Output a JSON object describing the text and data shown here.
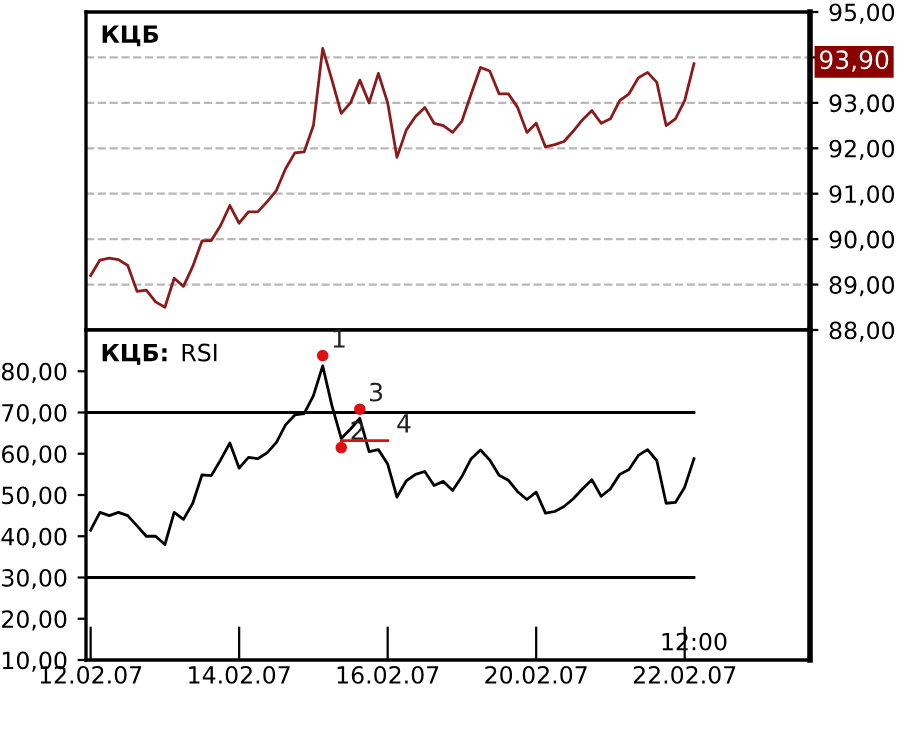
{
  "chart_data": [
    {
      "type": "line",
      "title": "КЦБ",
      "categories": [
        null,
        null,
        null,
        null,
        null,
        null,
        null,
        null,
        null,
        null,
        null,
        null,
        null,
        null,
        null,
        null,
        null,
        null,
        null,
        null,
        null,
        null,
        null,
        null,
        null,
        null,
        null,
        null,
        null,
        null,
        null,
        null,
        null,
        null,
        null,
        null,
        null,
        null,
        null,
        null,
        null,
        null,
        null,
        null,
        null,
        null,
        null,
        null,
        null,
        null,
        null,
        null,
        null,
        null,
        null,
        null,
        null,
        null,
        null,
        null,
        null,
        null,
        null,
        null,
        null,
        null,
        null,
        null,
        null,
        null,
        null,
        null,
        null,
        null,
        null,
        null,
        null,
        null
      ],
      "series": [
        {
          "color": "#8b1a1a",
          "values": [
            89.2,
            89.54,
            89.58,
            89.55,
            89.42,
            88.85,
            88.88,
            88.62,
            88.5,
            89.14,
            88.96,
            89.4,
            89.96,
            89.97,
            90.3,
            90.74,
            90.35,
            90.6,
            90.6,
            90.82,
            91.07,
            91.55,
            91.9,
            91.92,
            92.5,
            94.2,
            93.5,
            92.77,
            93.0,
            93.5,
            93.0,
            93.65,
            93.0,
            91.8,
            92.4,
            92.7,
            92.9,
            92.55,
            92.5,
            92.35,
            92.6,
            93.2,
            93.78,
            93.7,
            93.2,
            93.2,
            92.9,
            92.35,
            92.55,
            92.03,
            92.08,
            92.15,
            92.38,
            92.63,
            92.83,
            92.55,
            92.65,
            93.05,
            93.2,
            93.55,
            93.67,
            93.45,
            92.5,
            92.65,
            93.05,
            93.86,
            null,
            null,
            null,
            null,
            null,
            null,
            null,
            null,
            null,
            null,
            null,
            null
          ]
        }
      ],
      "ylim": [
        88,
        95
      ],
      "yticks": [
        {
          "value": 88,
          "label": "88,00"
        },
        {
          "value": 89,
          "label": "89,00"
        },
        {
          "value": 90,
          "label": "90,00"
        },
        {
          "value": 91,
          "label": "91,00"
        },
        {
          "value": 92,
          "label": "92,00"
        },
        {
          "value": 93,
          "label": "93,00"
        },
        {
          "value": 94,
          "label": null
        },
        {
          "value": 95,
          "label": "95,00"
        }
      ],
      "annotations": [
        {
          "text": "93,90",
          "y": 93.9
        }
      ],
      "grid": "y",
      "tick_labels": "y",
      "line_style": "solid"
    },
    {
      "type": "line",
      "title": "КЦБ:",
      "subtitle": "RSI",
      "categories": [
        "12.02.07",
        null,
        null,
        null,
        null,
        null,
        null,
        null,
        null,
        null,
        null,
        null,
        null,
        null,
        null,
        null,
        "14.02.07",
        null,
        null,
        null,
        null,
        null,
        null,
        null,
        null,
        null,
        null,
        null,
        null,
        null,
        null,
        null,
        "16.02.07",
        null,
        null,
        null,
        null,
        null,
        null,
        null,
        null,
        null,
        null,
        null,
        null,
        null,
        null,
        null,
        "20.02.07",
        null,
        null,
        null,
        null,
        null,
        null,
        null,
        null,
        null,
        null,
        null,
        null,
        null,
        null,
        null,
        "22.02.07",
        "12:00",
        null,
        null,
        null,
        null,
        null,
        null,
        null,
        null,
        null,
        null,
        null,
        null
      ],
      "series": [
        {
          "color": "#000000",
          "values": [
            41.5,
            45.8,
            45,
            45.8,
            45,
            42.5,
            40,
            40,
            38,
            45.8,
            44.1,
            48,
            54.9,
            54.7,
            58.5,
            62.6,
            56.5,
            59.1,
            58.8,
            60.2,
            62.7,
            67,
            69.4,
            69.7,
            74.1,
            81.3,
            71.6,
            63.7,
            66,
            68.6,
            60.5,
            61,
            57.5,
            49.5,
            53.4,
            55,
            55.7,
            52.3,
            53.3,
            51.1,
            54.5,
            58.8,
            60.9,
            58.5,
            54.8,
            53.6,
            50.8,
            48.9,
            50.7,
            45.6,
            46,
            47.2,
            49.1,
            51.5,
            53.7,
            49.7,
            51.5,
            55,
            56.2,
            59.6,
            61,
            58.3,
            48,
            48.2,
            51.9,
            58.8,
            null,
            null,
            null,
            null,
            null,
            null,
            null,
            null,
            null,
            null,
            null,
            null
          ]
        },
        {
          "type": "scatter",
          "name": "1",
          "color": "#e01010",
          "values": [
            null,
            null,
            null,
            null,
            null,
            null,
            null,
            null,
            null,
            null,
            null,
            null,
            null,
            null,
            null,
            null,
            null,
            null,
            null,
            null,
            null,
            null,
            null,
            null,
            null,
            83.8,
            null,
            null,
            null,
            null,
            null,
            null,
            null,
            null,
            null,
            null,
            null,
            null,
            null,
            null,
            null,
            null,
            null,
            null,
            null,
            null,
            null,
            null,
            null,
            null,
            null,
            null,
            null,
            null,
            null,
            null,
            null,
            null,
            null,
            null,
            null,
            null,
            null,
            null,
            null,
            null,
            null,
            null,
            null,
            null,
            null,
            null,
            null,
            null,
            null,
            null,
            null,
            null
          ]
        },
        {
          "type": "scatter",
          "name": "2",
          "color": "#e01010",
          "values": [
            null,
            null,
            null,
            null,
            null,
            null,
            null,
            null,
            null,
            null,
            null,
            null,
            null,
            null,
            null,
            null,
            null,
            null,
            null,
            null,
            null,
            null,
            null,
            null,
            null,
            null,
            null,
            61.5,
            null,
            null,
            null,
            null,
            null,
            null,
            null,
            null,
            null,
            null,
            null,
            null,
            null,
            null,
            null,
            null,
            null,
            null,
            null,
            null,
            null,
            null,
            null,
            null,
            null,
            null,
            null,
            null,
            null,
            null,
            null,
            null,
            null,
            null,
            null,
            null,
            null,
            null,
            null,
            null,
            null,
            null,
            null,
            null,
            null,
            null,
            null,
            null,
            null,
            null
          ]
        },
        {
          "type": "scatter",
          "name": "3",
          "color": "#e01010",
          "values": [
            null,
            null,
            null,
            null,
            null,
            null,
            null,
            null,
            null,
            null,
            null,
            null,
            null,
            null,
            null,
            null,
            null,
            null,
            null,
            null,
            null,
            null,
            null,
            null,
            null,
            null,
            null,
            null,
            null,
            70.8,
            null,
            null,
            null,
            null,
            null,
            null,
            null,
            null,
            null,
            null,
            null,
            null,
            null,
            null,
            null,
            null,
            null,
            null,
            null,
            null,
            null,
            null,
            null,
            null,
            null,
            null,
            null,
            null,
            null,
            null,
            null,
            null,
            null,
            null,
            null,
            null,
            null,
            null,
            null,
            null,
            null,
            null,
            null,
            null,
            null,
            null,
            null,
            null
          ]
        },
        {
          "type": "line",
          "name": "4",
          "color": "#e01010",
          "values": [
            null,
            null,
            null,
            null,
            null,
            null,
            null,
            null,
            null,
            null,
            null,
            null,
            null,
            null,
            null,
            null,
            null,
            null,
            null,
            null,
            null,
            null,
            null,
            null,
            null,
            null,
            null,
            63.2,
            63.2,
            63.2,
            63.2,
            63.2,
            63.2,
            null,
            null,
            null,
            null,
            null,
            null,
            null,
            null,
            null,
            null,
            null,
            null,
            null,
            null,
            null,
            null,
            null,
            null,
            null,
            null,
            null,
            null,
            null,
            null,
            null,
            null,
            null,
            null,
            null,
            null,
            null,
            null,
            null,
            null,
            null,
            null,
            null,
            null,
            null,
            null,
            null,
            null,
            null,
            null,
            null
          ]
        }
      ],
      "ylim": [
        10,
        90
      ],
      "yticks": [
        {
          "value": 10,
          "label": "10,00"
        },
        {
          "value": 20,
          "label": "20,00"
        },
        {
          "value": 30,
          "label": "30,00"
        },
        {
          "value": 40,
          "label": "40,00"
        },
        {
          "value": 50,
          "label": "50,00"
        },
        {
          "value": 60,
          "label": "60,00"
        },
        {
          "value": 70,
          "label": "70,00"
        },
        {
          "value": 80,
          "label": "80,00"
        }
      ],
      "ref_lines": [
        {
          "axis": "y",
          "value": 70,
          "color": "#000000"
        },
        {
          "axis": "y",
          "value": 30,
          "color": "#000000"
        }
      ],
      "grid": false,
      "line_style": "solid"
    }
  ]
}
